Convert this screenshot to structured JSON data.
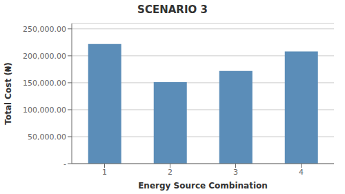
{
  "chart_data": {
    "type": "bar",
    "title": "SCENARIO 3",
    "xlabel": "Energy Source Combination",
    "ylabel": "Total Cost (₦)",
    "categories": [
      "1",
      "2",
      "3",
      "4"
    ],
    "values": [
      222000,
      151000,
      172000,
      208000
    ],
    "color": "#5b8db8",
    "ylim": [
      0,
      260000
    ],
    "yticks": [
      {
        "value": 0,
        "label": "-"
      },
      {
        "value": 50000,
        "label": "50,000.00"
      },
      {
        "value": 100000,
        "label": "100,000.00"
      },
      {
        "value": 150000,
        "label": "150,000.00"
      },
      {
        "value": 200000,
        "label": "200,000.00"
      },
      {
        "value": 250000,
        "label": "250,000.00"
      }
    ],
    "grid": true
  }
}
